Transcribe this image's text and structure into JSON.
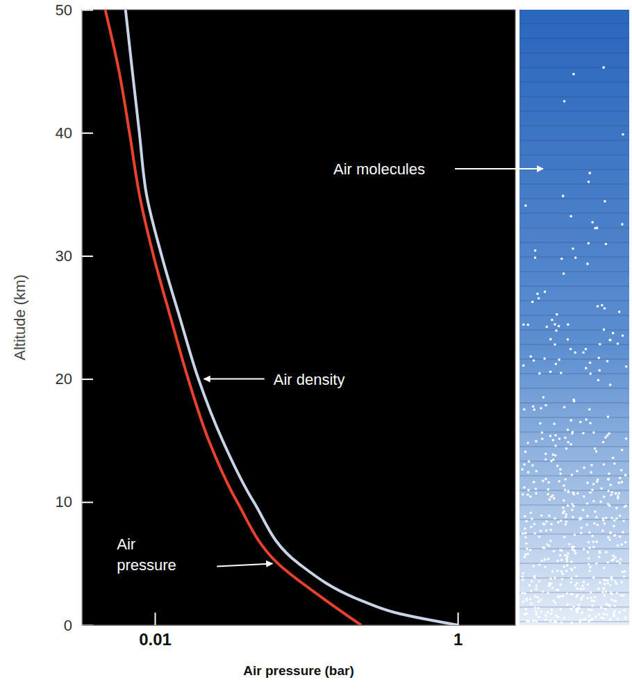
{
  "chart_data": {
    "type": "line",
    "x_label": "Air pressure (bar)",
    "y_label": "Altitude (km)",
    "log": "x",
    "xlim": [
      0.0033,
      2.4
    ],
    "ylim": [
      0,
      50
    ],
    "xticks": [
      0.01,
      1
    ],
    "yticks": [
      0,
      10,
      20,
      30,
      40,
      50
    ],
    "annotations": [
      "Air molecules"
    ],
    "series": [
      {
        "name": "Air pressure",
        "color": "#e8412c",
        "x": [
          0.23,
          0.135,
          0.065,
          0.035,
          0.0227,
          0.0166,
          0.0127,
          0.0098,
          0.0079,
          0.0068,
          0.0058,
          0.0047
        ],
        "values": [
          0,
          2,
          5,
          10,
          15,
          20,
          25,
          30,
          35,
          40,
          45,
          50
        ]
      },
      {
        "name": "Air density",
        "color": "#c9d5e6",
        "x": [
          1.0,
          0.39,
          0.23,
          0.089,
          0.045,
          0.028,
          0.0194,
          0.0146,
          0.0111,
          0.0088,
          0.0079,
          0.0071,
          0.0064
        ],
        "values": [
          0,
          1,
          2,
          5,
          10,
          15,
          20,
          25,
          30,
          35,
          40,
          45,
          50
        ]
      }
    ]
  }
}
